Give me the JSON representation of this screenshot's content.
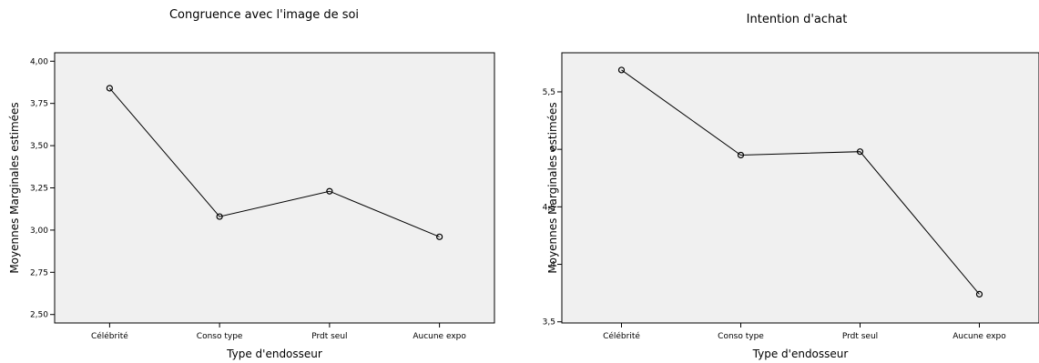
{
  "chart_data": [
    {
      "type": "line",
      "title": "Congruence avec l'image de soi",
      "xlabel": "Type d'endosseur",
      "ylabel": "Moyennes Marginales estimées",
      "categories": [
        "Célébrité",
        "Conso type",
        "Prdt seul",
        "Aucune expo"
      ],
      "values": [
        3.84,
        3.08,
        3.23,
        2.96
      ],
      "ylim": [
        2.45,
        4.05
      ],
      "yticks": [
        2.5,
        2.75,
        3.0,
        3.25,
        3.5,
        3.75,
        4.0
      ],
      "ytick_labels": [
        "2,50",
        "2,75",
        "3,00",
        "3,25",
        "3,50",
        "3,75",
        "4,00"
      ],
      "grid": false,
      "background": "#f0f0f0",
      "line_color": "#000000"
    },
    {
      "type": "line",
      "title": "Intention d'achat",
      "xlabel": "Type d'endosseur",
      "ylabel": "Moyennes Marginales estimées",
      "categories": [
        "Célébrité",
        "Conso type",
        "Prdt seul",
        "Aucune expo"
      ],
      "values": [
        5.69,
        4.95,
        4.98,
        3.74
      ],
      "ylim": [
        3.49,
        5.84
      ],
      "yticks": [
        3.5,
        4,
        4.5,
        5,
        5.5
      ],
      "ytick_labels": [
        "3,5",
        "4",
        "4,5",
        "5",
        "5,5"
      ],
      "grid": false,
      "background": "#f0f0f0",
      "line_color": "#000000"
    }
  ]
}
